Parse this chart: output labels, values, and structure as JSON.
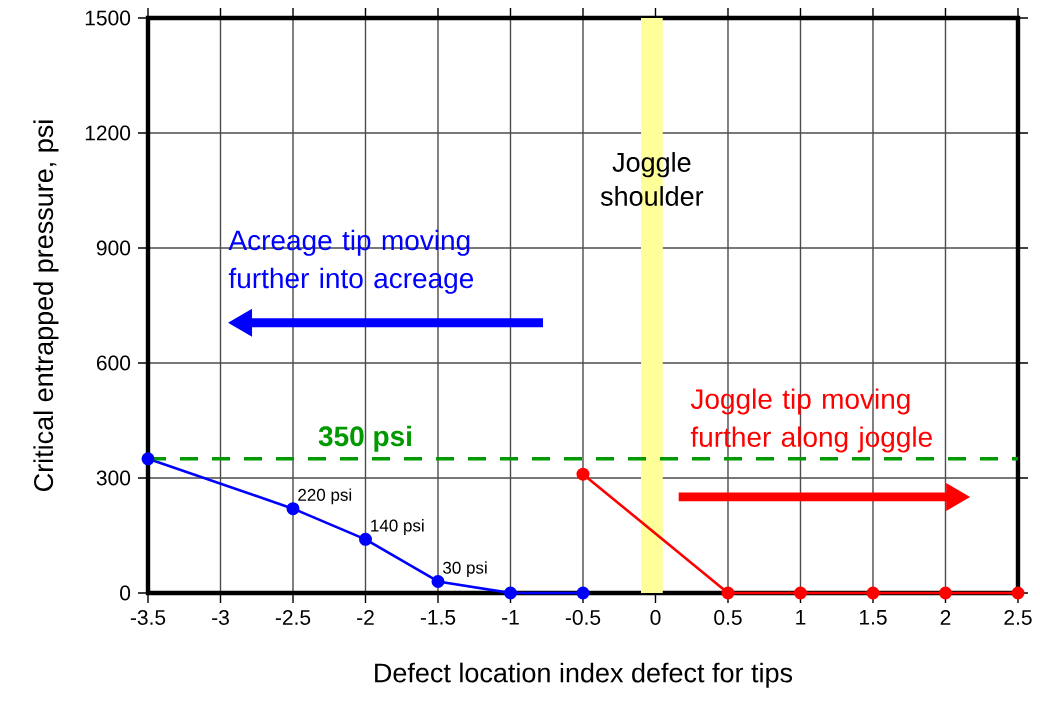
{
  "chart_data": {
    "type": "line",
    "xlabel": "Defect location index defect for tips",
    "ylabel": "Critical entrapped pressure, psi",
    "xlim": [
      -3.5,
      2.5
    ],
    "ylim": [
      0,
      1500
    ],
    "xticks": [
      -3.5,
      -3,
      -2.5,
      -2,
      -1.5,
      -1,
      -0.5,
      0,
      0.5,
      1,
      1.5,
      2,
      2.5
    ],
    "yticks": [
      0,
      300,
      600,
      900,
      1200,
      1500
    ],
    "grid": true,
    "marker": "circle",
    "line_style": "solid",
    "series": [
      {
        "color": "#0000ff",
        "x": [
          -3.5,
          -2.5,
          -2,
          -1.5,
          -1,
          -0.5
        ],
        "values": [
          350,
          220,
          140,
          30,
          0,
          0
        ],
        "value_labels": [
          null,
          "220 psi",
          "140 psi",
          "30 psi",
          null,
          null
        ]
      },
      {
        "color": "#ff0000",
        "x": [
          -0.5,
          0.5,
          1,
          1.5,
          2,
          2.5
        ],
        "values": [
          310,
          0,
          0,
          0,
          0,
          0
        ]
      }
    ],
    "ref_lines": [
      {
        "axis": "y",
        "value": 350,
        "label": "350 psi",
        "color": "#009900",
        "line_style": "dashed"
      }
    ],
    "bands": [
      {
        "axis": "x",
        "from": -0.1,
        "to": 0.05,
        "label": "Joggle shoulder",
        "color": "#ffff99"
      }
    ],
    "annotations": [
      "Acreage tip moving further into acreage",
      "Joggle tip moving further along joggle"
    ]
  }
}
